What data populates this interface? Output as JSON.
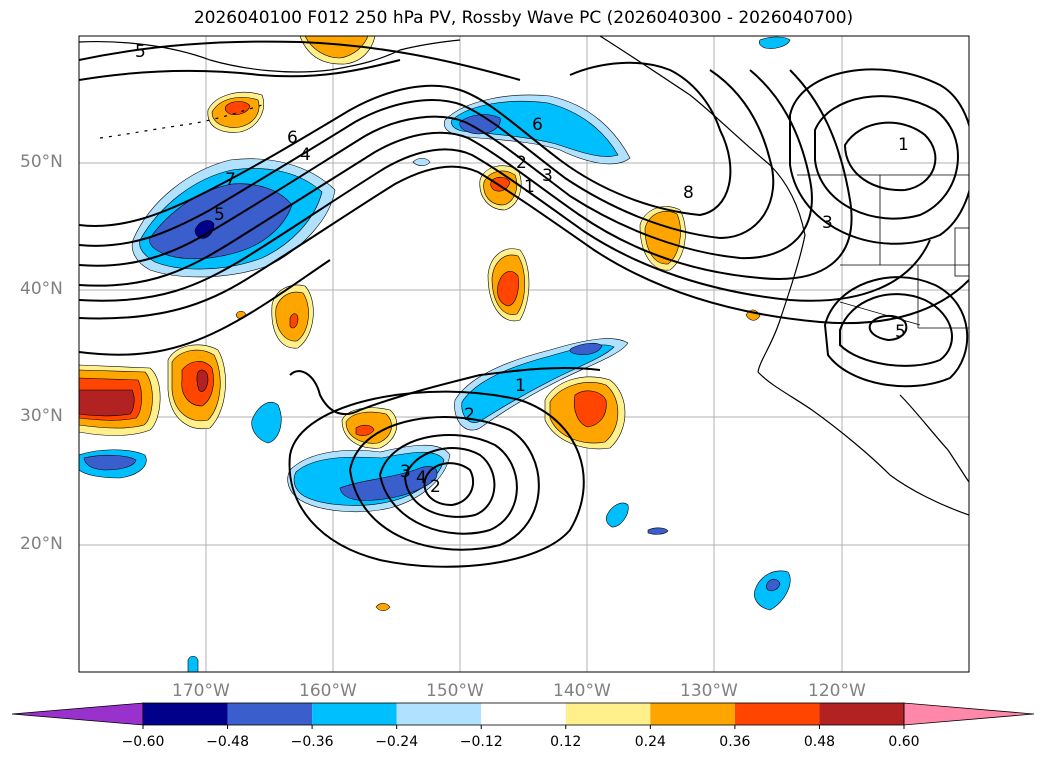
{
  "title": "2026040100 F012 250 hPa PV, Rossby Wave PC (2026040300 - 2026040700)",
  "lat_labels": [
    "50°N",
    "40°N",
    "30°N",
    "20°N"
  ],
  "lon_labels": [
    "170°W",
    "160°W",
    "150°W",
    "140°W",
    "130°W",
    "120°W"
  ],
  "colorbar": {
    "ticks": [
      "−0.60",
      "−0.48",
      "−0.36",
      "−0.24",
      "−0.12",
      "0.12",
      "0.24",
      "0.36",
      "0.48",
      "0.60"
    ],
    "colors": [
      "#9932cc",
      "#00008b",
      "#3a5fcd",
      "#00bfff",
      "#b0e2ff",
      "#ffffff",
      "#fff08c",
      "#ffa500",
      "#ff4500",
      "#b22222",
      "#ff88aa"
    ]
  },
  "contour_labels": [
    "5",
    "6",
    "4",
    "7",
    "5",
    "6",
    "2",
    "1",
    "3",
    "8",
    "1",
    "3",
    "5",
    "1",
    "2",
    "3",
    "4",
    "2"
  ],
  "colors": {
    "neg_light": "#b0e2ff",
    "neg_mid": "#00bfff",
    "neg_strong": "#3a5fcd",
    "neg_dark": "#00008b",
    "pos_light": "#fff08c",
    "pos_mid": "#ffa500",
    "pos_strong": "#ff4500",
    "pos_dark": "#b22222"
  }
}
